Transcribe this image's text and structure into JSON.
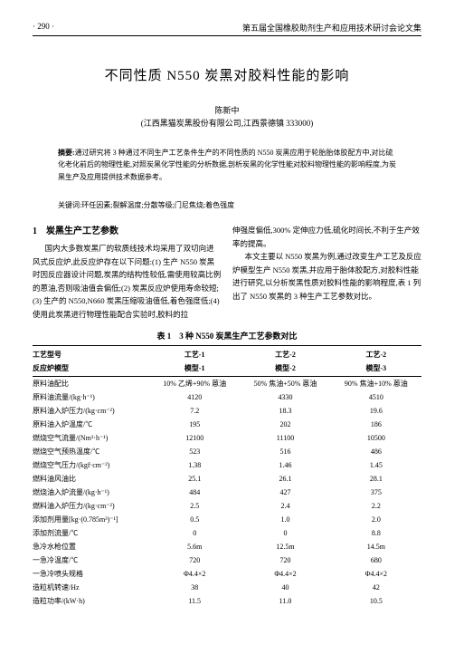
{
  "header": {
    "page_no": "· 290 ·",
    "book_title": "第五届全国橡胶助剂生产和应用技术研讨会论文集"
  },
  "title": "不同性质 N550 炭黑对胶料性能的影响",
  "author": {
    "name": "陈新中",
    "affiliation": "(江西黑猫炭黑股份有限公司,江西景德镇 333000)"
  },
  "abstract": {
    "label": "摘要:",
    "text": "通过研究将 3 种通过不同生产工艺条件生产的不同性质的 N550 炭黑应用于轮胎胎体胶配方中,对比硫化老化前后的物理性能,对照炭黑化学性能的分析数据,剖析炭黑的化学性能对胶料物理性能的影响程度,为炭黑生产及应用提供技术数据参考。"
  },
  "keywords": {
    "label": "关键词:",
    "text": "环任因素;裂解温度;分散等级;门尼焦烧;着色强度"
  },
  "section1": {
    "heading": "1　炭黑生产工艺参数",
    "left_p1": "国内大多数炭黑厂的软质线技术均采用了双切向进风式反应炉,此反应炉存在以下问题:(1) 生产 N550 炭黑时因反应器设计问题,炭黑的结构性较低,需使用较高比例的蒽油,否则吸油值会偏低;(2) 炭黑反应炉使用寿命较短;(3) 生产的 N550,N660 炭黑压缩吸油值低,着色强度低;(4) 使用此炭黑进行物理性能配合实验时,胶料的拉",
    "right_p1": "伸强度偏低,300% 定伸应力低,硫化时间长,不利于生产效率的提高。",
    "right_p2": "本文主要以 N550 炭黑为例,通过改变生产工艺及反应炉模型生产 N550 炭黑,并应用于胎体胶配方,对胶料性能进行研究,以分析炭黑性质对胶料性能的影响程度,表 1 列出了 N550 炭黑的 3 种生产工艺参数对比。"
  },
  "table1": {
    "caption": "表 1　3 种 N550 炭黑生产工艺参数对比",
    "header_row1": [
      "工艺型号",
      "工艺-1",
      "工艺-2",
      "工艺-2"
    ],
    "header_row2": [
      "反应炉模型",
      "模型-1",
      "模型-2",
      "模型-3"
    ],
    "rows": [
      [
        "原料油配比",
        "10% 乙烯+90% 蒽油",
        "50% 焦油+50% 蒽油",
        "90% 焦油+10% 蒽油"
      ],
      [
        "原料油流量/(kg·h⁻¹)",
        "4120",
        "4330",
        "4510"
      ],
      [
        "原料油入炉压力/(kg·cm⁻²)",
        "7.2",
        "18.3",
        "19.6"
      ],
      [
        "原料油入炉温度/℃",
        "195",
        "202",
        "186"
      ],
      [
        "燃烧空气流量/(Nm³·h⁻¹)",
        "12100",
        "11100",
        "10500"
      ],
      [
        "燃烧空气预热温度/℃",
        "523",
        "516",
        "486"
      ],
      [
        "燃烧空气压力/(kgf·cm⁻²)",
        "1.38",
        "1.46",
        "1.45"
      ],
      [
        "燃料油风油比",
        "25.1",
        "26.1",
        "28.1"
      ],
      [
        "燃烧油入炉流量/(kg·h⁻¹)",
        "484",
        "427",
        "375"
      ],
      [
        "燃料油入炉压力/(kg·cm⁻²)",
        "2.5",
        "2.4",
        "2.2"
      ],
      [
        "添加剂用量[kg·(0.785m³)⁻¹]",
        "0.5",
        "1.0",
        "2.0"
      ],
      [
        "添加剂流量/℃",
        "0",
        "0",
        "8.8"
      ],
      [
        "急冷水枪位置",
        "5.6m",
        "12.5m",
        "14.5m"
      ],
      [
        "一急冷温度/℃",
        "720",
        "720",
        "680"
      ],
      [
        "一急冷喷头规格",
        "Φ4.4×2",
        "Φ4.4×2",
        "Φ4.4×2"
      ],
      [
        "造粒机转速/Hz",
        "38",
        "40",
        "42"
      ],
      [
        "造粒功率/(kW·h)",
        "11.5",
        "11.0",
        "10.5"
      ]
    ]
  }
}
